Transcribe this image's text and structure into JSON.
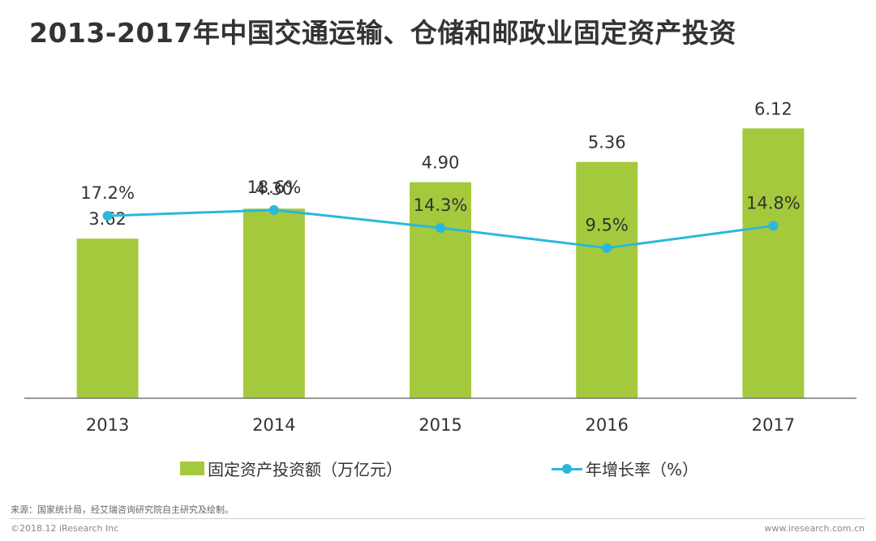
{
  "chart_data": {
    "type": "bar",
    "title": "2013-2017年中国交通运输、仓储和邮政业固定资产投资",
    "categories": [
      "2013",
      "2014",
      "2015",
      "2016",
      "2017"
    ],
    "series": [
      {
        "name": "固定资产投资额（万亿元）",
        "type": "bar",
        "axis": "left",
        "color": "#a5c93d",
        "values": [
          3.62,
          4.3,
          4.9,
          5.36,
          6.12
        ],
        "labels": [
          "3.62",
          "4.30",
          "4.90",
          "5.36",
          "6.12"
        ]
      },
      {
        "name": "年增长率（%）",
        "type": "line",
        "axis": "right",
        "color": "#2ab8dc",
        "values": [
          17.2,
          18.6,
          14.3,
          9.5,
          14.8
        ],
        "labels": [
          "17.2%",
          "18.6%",
          "14.3%",
          "9.5%",
          "14.8%"
        ]
      }
    ],
    "ylim_left": [
      0,
      7.1
    ],
    "ylim_right": [
      -26.5,
      48.5
    ],
    "grid": false,
    "legend_position": "bottom"
  },
  "footer": {
    "source": "来源：国家统计局，经艾瑞咨询研究院自主研究及绘制。",
    "copyright": "©2018.12 iResearch Inc",
    "website": "www.iresearch.com.cn"
  }
}
